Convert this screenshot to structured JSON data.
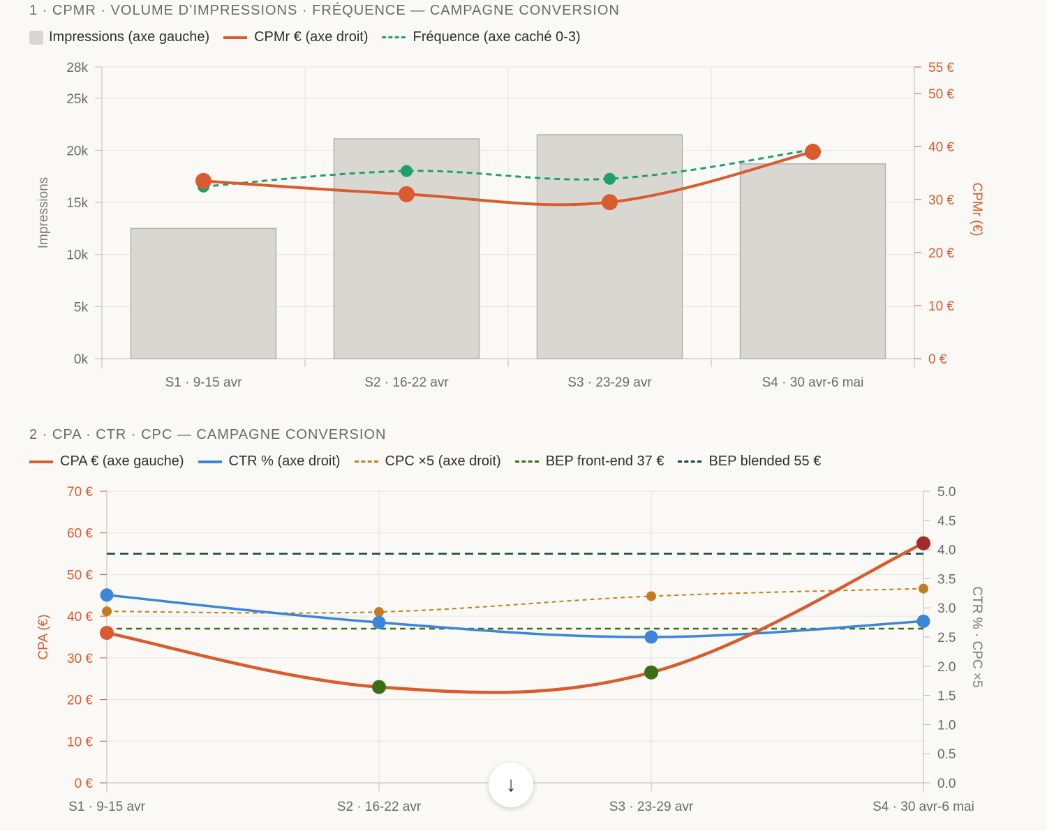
{
  "charts": [
    {
      "title": "1 · CPMR · VOLUME D’IMPRESSIONS · FRÉQUENCE — CAMPAGNE CONVERSION",
      "legend": [
        {
          "label": "Impressions (axe gauche)",
          "kind": "box",
          "color": "#d9d7d2"
        },
        {
          "label": "CPMr € (axe droit)",
          "kind": "solid",
          "color": "#d95b2e"
        },
        {
          "label": "Fréquence (axe caché 0-3)",
          "kind": "dashed",
          "color": "#1f9e6e"
        }
      ]
    },
    {
      "title": "2 · CPA · CTR · CPC — CAMPAGNE CONVERSION",
      "legend": [
        {
          "label": "CPA € (axe gauche)",
          "kind": "solid",
          "color": "#d95b2e"
        },
        {
          "label": "CTR % (axe droit)",
          "kind": "solid",
          "color": "#3b86d9"
        },
        {
          "label": "CPC ×5 (axe droit)",
          "kind": "dashed",
          "color": "#c47d1e"
        },
        {
          "label": "BEP front-end 37 €",
          "kind": "dashed",
          "color": "#3a6e12"
        },
        {
          "label": "BEP blended 55 €",
          "kind": "dashed",
          "color": "#0e4a3a"
        }
      ]
    }
  ],
  "scroll_button": {
    "glyph": "↓"
  },
  "chart_data": [
    {
      "type": "bar",
      "categories": [
        "S1 · 9-15 avr",
        "S2 · 16-22 avr",
        "S3 · 23-29 avr",
        "S4 · 30 avr-6 mai"
      ],
      "ylabel": "Impressions",
      "y2label": "CPMr (€)",
      "ylim": [
        0,
        28000
      ],
      "y2lim": [
        0,
        55
      ],
      "yticks": [
        {
          "v": 0,
          "label": "0k"
        },
        {
          "v": 5000,
          "label": "5k"
        },
        {
          "v": 10000,
          "label": "10k"
        },
        {
          "v": 15000,
          "label": "15k"
        },
        {
          "v": 20000,
          "label": "20k"
        },
        {
          "v": 25000,
          "label": "25k"
        },
        {
          "v": 28000,
          "label": "28k"
        }
      ],
      "y2ticks": [
        {
          "v": 0,
          "label": "0 €"
        },
        {
          "v": 10,
          "label": "10 €"
        },
        {
          "v": 20,
          "label": "20 €"
        },
        {
          "v": 30,
          "label": "30 €"
        },
        {
          "v": 40,
          "label": "40 €"
        },
        {
          "v": 50,
          "label": "50 €"
        },
        {
          "v": 55,
          "label": "55 €"
        }
      ],
      "series": [
        {
          "name": "Impressions (axe gauche)",
          "axis": "left",
          "kind": "bar",
          "color": "#d9d7d2",
          "values": [
            12500,
            21100,
            21500,
            18700
          ]
        },
        {
          "name": "CPMr € (axe droit)",
          "axis": "right",
          "kind": "line",
          "color": "#d95b2e",
          "values": [
            33.5,
            31.0,
            29.5,
            39.0
          ]
        },
        {
          "name": "Fréquence (axe caché 0-3)",
          "axis": "hidden",
          "kind": "dashed",
          "color": "#1f9e6e",
          "range": [
            0,
            3
          ],
          "values": [
            1.77,
            1.93,
            1.85,
            2.15
          ]
        }
      ]
    },
    {
      "type": "line",
      "categories": [
        "S1 · 9-15 avr",
        "S2 · 16-22 avr",
        "S3 · 23-29 avr",
        "S4 · 30 avr-6 mai"
      ],
      "ylabel": "CPA (€)",
      "y2label": "CTR % · CPC ×5",
      "ylim": [
        0,
        70
      ],
      "y2lim": [
        0,
        5
      ],
      "yticks": [
        {
          "v": 0,
          "label": "0 €"
        },
        {
          "v": 10,
          "label": "10 €"
        },
        {
          "v": 20,
          "label": "20 €"
        },
        {
          "v": 30,
          "label": "30 €"
        },
        {
          "v": 40,
          "label": "40 €"
        },
        {
          "v": 50,
          "label": "50 €"
        },
        {
          "v": 60,
          "label": "60 €"
        },
        {
          "v": 70,
          "label": "70 €"
        }
      ],
      "y2ticks": [
        {
          "v": 0,
          "label": "0.0"
        },
        {
          "v": 0.5,
          "label": "0.5"
        },
        {
          "v": 1,
          "label": "1.0"
        },
        {
          "v": 1.5,
          "label": "1.5"
        },
        {
          "v": 2,
          "label": "2.0"
        },
        {
          "v": 2.5,
          "label": "2.5"
        },
        {
          "v": 3,
          "label": "3.0"
        },
        {
          "v": 3.5,
          "label": "3.5"
        },
        {
          "v": 4,
          "label": "4.0"
        },
        {
          "v": 4.5,
          "label": "4.5"
        },
        {
          "v": 5,
          "label": "5.0"
        }
      ],
      "series": [
        {
          "name": "CPA € (axe gauche)",
          "axis": "left",
          "kind": "line",
          "color": "#d95b2e",
          "values": [
            36,
            23,
            26.5,
            57.5
          ],
          "point_colors": [
            "#d95b2e",
            "#3a6e12",
            "#3a6e12",
            "#a52a2a"
          ]
        },
        {
          "name": "CTR % (axe droit)",
          "axis": "right",
          "kind": "line",
          "color": "#3b86d9",
          "values": [
            3.22,
            2.75,
            2.5,
            2.77
          ]
        },
        {
          "name": "CPC ×5 (axe droit)",
          "axis": "right",
          "kind": "dashed",
          "color": "#c47d1e",
          "values": [
            2.94,
            2.93,
            3.2,
            3.33
          ]
        },
        {
          "name": "BEP front-end 37 €",
          "axis": "left",
          "kind": "hline",
          "color": "#3a6e12",
          "value": 37
        },
        {
          "name": "BEP blended 55 €",
          "axis": "left",
          "kind": "hline",
          "color": "#0e4a3a",
          "value": 55
        }
      ]
    }
  ]
}
